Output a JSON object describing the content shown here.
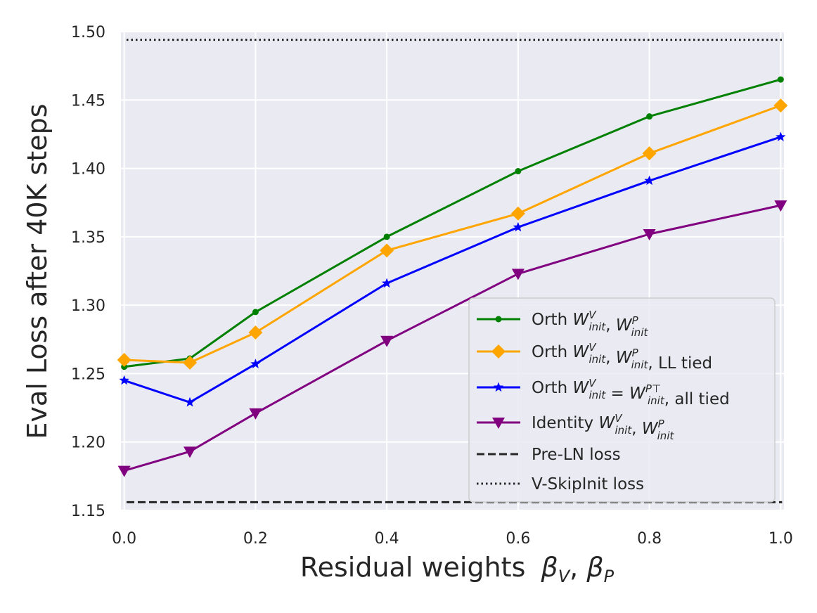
{
  "chart_data": {
    "type": "line",
    "xlabel_text": "Residual weights",
    "xlabel_symbols": [
      "β",
      "V",
      "β",
      "P"
    ],
    "ylabel": "Eval Loss after 40K steps",
    "xlim": [
      -0.005,
      1.005
    ],
    "ylim": [
      1.15,
      1.5
    ],
    "x_ticks": [
      0.0,
      0.2,
      0.4,
      0.6,
      0.8,
      1.0
    ],
    "x_tick_labels": [
      "0.0",
      "0.2",
      "0.4",
      "0.6",
      "0.8",
      "1.0"
    ],
    "y_ticks": [
      1.15,
      1.2,
      1.25,
      1.3,
      1.35,
      1.4,
      1.45,
      1.5
    ],
    "y_tick_labels": [
      "1.15",
      "1.20",
      "1.25",
      "1.30",
      "1.35",
      "1.40",
      "1.45",
      "1.50"
    ],
    "grid": true,
    "legend_position": "lower-right",
    "series": [
      {
        "name": "Orth W_init^V, W_init^P",
        "legend": {
          "prefix": "Orth",
          "rest": ""
        },
        "color": "#008000",
        "marker": "dot",
        "x": [
          0.0,
          0.1,
          0.2,
          0.4,
          0.6,
          0.8,
          1.0
        ],
        "values": [
          1.255,
          1.261,
          1.295,
          1.35,
          1.398,
          1.438,
          1.465
        ]
      },
      {
        "name": "Orth W_init^V, W_init^P, LL tied",
        "legend": {
          "prefix": "Orth",
          "rest": ", LL tied"
        },
        "color": "#FFA500",
        "marker": "diamond",
        "x": [
          0.0,
          0.1,
          0.2,
          0.4,
          0.6,
          0.8,
          1.0
        ],
        "values": [
          1.26,
          1.258,
          1.28,
          1.34,
          1.367,
          1.411,
          1.446
        ]
      },
      {
        "name": "Orth W_init^V = W_init^P⊤, all tied",
        "legend": {
          "prefix": "Orth",
          "rest": ", all tied"
        },
        "color": "#0000FF",
        "marker": "star",
        "x": [
          0.0,
          0.1,
          0.2,
          0.4,
          0.6,
          0.8,
          1.0
        ],
        "values": [
          1.245,
          1.229,
          1.257,
          1.316,
          1.357,
          1.391,
          1.423
        ]
      },
      {
        "name": "Identity W_init^V, W_init^P",
        "legend": {
          "prefix": "Identity",
          "rest": ""
        },
        "color": "#800080",
        "marker": "triangle-down",
        "x": [
          0.0,
          0.1,
          0.2,
          0.4,
          0.6,
          0.8,
          1.0
        ],
        "values": [
          1.179,
          1.193,
          1.221,
          1.274,
          1.323,
          1.352,
          1.373
        ]
      }
    ],
    "reference_lines": [
      {
        "name": "Pre-LN loss",
        "value": 1.156,
        "style": "dashed",
        "color": "#262626"
      },
      {
        "name": "V-SkipInit loss",
        "value": 1.494,
        "style": "dotted",
        "color": "#262626"
      }
    ],
    "math_tokens": {
      "W": "W",
      "init": "init",
      "V": "V",
      "P": "P",
      "PT": "P⊤",
      "eq": " = ",
      "comma": ", "
    }
  }
}
